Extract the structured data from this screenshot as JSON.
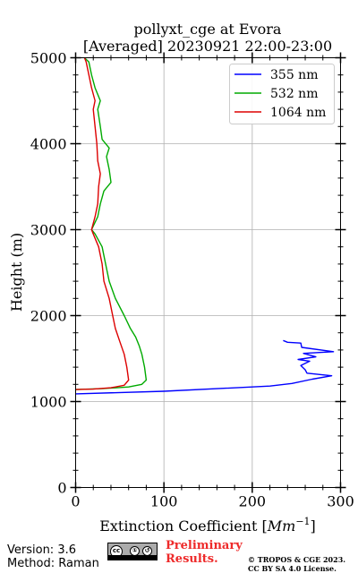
{
  "chart_data": {
    "type": "line",
    "title_line1": "pollyxt_cge at Evora",
    "title_line2": "[Averaged] 20230921 22:00-23:00",
    "xlabel": "Extinction Coefficient [Mm⁻¹]",
    "xlabel_prefix": "Extinction Coefficient [",
    "xlabel_unit": "Mm",
    "xlabel_exp": "−1",
    "xlabel_suffix": "]",
    "ylabel": "Height (m)",
    "xlim": [
      0,
      300
    ],
    "ylim": [
      0,
      5000
    ],
    "xticks": [
      0,
      100,
      200,
      300
    ],
    "yticks": [
      0,
      1000,
      2000,
      3000,
      4000,
      5000
    ],
    "grid": true,
    "legend_position": "top-right",
    "series": [
      {
        "name": "355 nm",
        "color": "#0000ff",
        "points": [
          [
            0,
            1090
          ],
          [
            100,
            1120
          ],
          [
            220,
            1180
          ],
          [
            245,
            1210
          ],
          [
            268,
            1260
          ],
          [
            290,
            1300
          ],
          [
            262,
            1330
          ],
          [
            260,
            1370
          ],
          [
            255,
            1420
          ],
          [
            265,
            1470
          ],
          [
            252,
            1490
          ],
          [
            272,
            1520
          ],
          [
            258,
            1560
          ],
          [
            292,
            1580
          ],
          [
            256,
            1630
          ],
          [
            255,
            1680
          ],
          [
            240,
            1690
          ],
          [
            235,
            1710
          ]
        ]
      },
      {
        "name": "532 nm",
        "color": "#00aa00",
        "points": [
          [
            0,
            1140
          ],
          [
            30,
            1150
          ],
          [
            60,
            1170
          ],
          [
            75,
            1200
          ],
          [
            80,
            1250
          ],
          [
            78,
            1400
          ],
          [
            75,
            1550
          ],
          [
            72,
            1650
          ],
          [
            68,
            1750
          ],
          [
            62,
            1850
          ],
          [
            55,
            2000
          ],
          [
            45,
            2200
          ],
          [
            38,
            2400
          ],
          [
            34,
            2600
          ],
          [
            30,
            2800
          ],
          [
            22,
            2950
          ],
          [
            18,
            3000
          ],
          [
            25,
            3150
          ],
          [
            28,
            3300
          ],
          [
            32,
            3450
          ],
          [
            40,
            3550
          ],
          [
            38,
            3700
          ],
          [
            35,
            3850
          ],
          [
            38,
            3950
          ],
          [
            30,
            4050
          ],
          [
            28,
            4200
          ],
          [
            25,
            4400
          ],
          [
            28,
            4500
          ],
          [
            22,
            4650
          ],
          [
            18,
            4800
          ],
          [
            15,
            4950
          ],
          [
            10,
            5000
          ]
        ]
      },
      {
        "name": "1064 nm",
        "color": "#dd0000",
        "points": [
          [
            0,
            1140
          ],
          [
            20,
            1145
          ],
          [
            40,
            1160
          ],
          [
            55,
            1190
          ],
          [
            60,
            1250
          ],
          [
            58,
            1400
          ],
          [
            55,
            1550
          ],
          [
            50,
            1700
          ],
          [
            45,
            1850
          ],
          [
            42,
            2000
          ],
          [
            38,
            2200
          ],
          [
            32,
            2400
          ],
          [
            30,
            2600
          ],
          [
            26,
            2800
          ],
          [
            20,
            2950
          ],
          [
            18,
            3000
          ],
          [
            22,
            3150
          ],
          [
            25,
            3300
          ],
          [
            26,
            3500
          ],
          [
            28,
            3650
          ],
          [
            25,
            3800
          ],
          [
            24,
            4000
          ],
          [
            22,
            4200
          ],
          [
            20,
            4400
          ],
          [
            22,
            4500
          ],
          [
            18,
            4650
          ],
          [
            15,
            4800
          ],
          [
            12,
            4950
          ],
          [
            10,
            5000
          ]
        ]
      }
    ]
  },
  "footer": {
    "version": "Version: 3.6",
    "method": "Method: Raman",
    "badge_cc": "cc",
    "badge_by": "①",
    "badge_sa": "↺",
    "preliminary_line1": "Preliminary",
    "preliminary_line2": "Results.",
    "copyright_line1": "© TROPOS & CGE 2023.",
    "copyright_line2": "CC BY SA 4.0 License."
  }
}
